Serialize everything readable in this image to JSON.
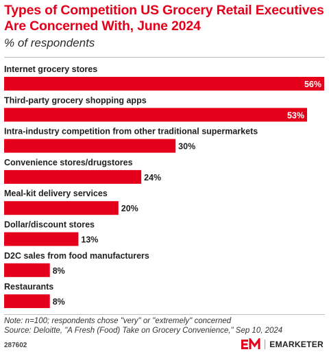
{
  "title": "Types of Competition US Grocery Retail Executives Are Concerned With, June 2024",
  "subtitle": "% of respondents",
  "note": "Note: n=100; respondents chose \"very\" or \"extremely\" concerned",
  "source": "Source: Deloitte, \"A Fresh (Food) Take on Grocery Convenience,\" Sep 10, 2024",
  "chart_id": "287602",
  "brand": "EMARKETER",
  "colors": {
    "bar": "#e4001b",
    "title": "#e4001b"
  },
  "chart_data": {
    "type": "bar",
    "orientation": "horizontal",
    "categories": [
      "Internet grocery stores",
      "Third-party grocery shopping apps",
      "Intra-industry competition from other traditional supermarkets",
      "Convenience stores/drugstores",
      "Meal-kit delivery services",
      "Dollar/discount stores",
      "D2C sales from food manufacturers",
      "Restaurants"
    ],
    "values": [
      56,
      53,
      30,
      24,
      20,
      13,
      8,
      8
    ],
    "value_labels": [
      "56%",
      "53%",
      "30%",
      "24%",
      "20%",
      "13%",
      "8%",
      "8%"
    ],
    "xlim": [
      0,
      56
    ],
    "grid": false
  }
}
